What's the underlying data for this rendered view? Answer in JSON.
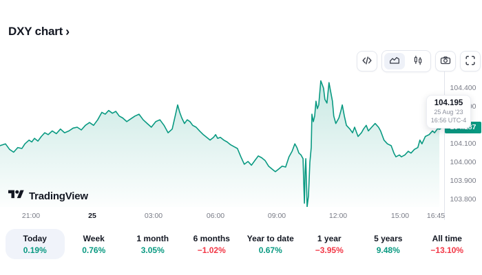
{
  "header": {
    "title": "DXY chart",
    "link_chevron": "›"
  },
  "toolbar": {
    "icons": [
      "code",
      "area-chart",
      "candlestick-chart",
      "camera",
      "fullscreen"
    ],
    "selected_style": "area-chart"
  },
  "watermark": {
    "text": "TradingView"
  },
  "colors": {
    "up": "#089981",
    "down": "#f23645",
    "badge_bg": "#089981",
    "selected_bg": "#f0f3fa",
    "text": "#131722",
    "muted": "#787b86",
    "border": "#e0e3eb"
  },
  "chart_data": {
    "type": "area",
    "title": "DXY chart",
    "series_name": "DXY",
    "legend_position": "none",
    "grid": false,
    "ylim": [
      103.76,
      104.49
    ],
    "yticks": [
      "104.400",
      "104.300",
      "104.200",
      "104.100",
      "104.000",
      "103.900",
      "103.800"
    ],
    "window_minutes": 1300,
    "x_unit": "minutes across visible session (24 Aug evening → 25 Aug 16:56)",
    "xticks": [
      {
        "label": "21:00",
        "min": 90
      },
      {
        "label": "25",
        "min": 270,
        "bold": true
      },
      {
        "label": "03:00",
        "min": 450
      },
      {
        "label": "06:00",
        "min": 630
      },
      {
        "label": "09:00",
        "min": 810
      },
      {
        "label": "12:00",
        "min": 990
      },
      {
        "label": "15:00",
        "min": 1170
      },
      {
        "label": "16:45",
        "min": 1275
      }
    ],
    "last": {
      "price": "104.187",
      "tooltip_price": "104.195",
      "date": "25 Aug '23",
      "time": "16:56 UTC-4"
    },
    "points": [
      [
        0,
        104.09
      ],
      [
        16,
        104.1
      ],
      [
        28,
        104.07
      ],
      [
        40,
        104.055
      ],
      [
        52,
        104.08
      ],
      [
        64,
        104.075
      ],
      [
        73,
        104.1
      ],
      [
        85,
        104.12
      ],
      [
        93,
        104.11
      ],
      [
        101,
        104.13
      ],
      [
        111,
        104.115
      ],
      [
        121,
        104.14
      ],
      [
        131,
        104.16
      ],
      [
        141,
        104.15
      ],
      [
        153,
        104.17
      ],
      [
        165,
        104.155
      ],
      [
        177,
        104.18
      ],
      [
        189,
        104.16
      ],
      [
        202,
        104.17
      ],
      [
        214,
        104.185
      ],
      [
        226,
        104.19
      ],
      [
        238,
        104.175
      ],
      [
        250,
        104.2
      ],
      [
        262,
        104.215
      ],
      [
        274,
        104.2
      ],
      [
        286,
        104.23
      ],
      [
        298,
        104.27
      ],
      [
        308,
        104.26
      ],
      [
        318,
        104.28
      ],
      [
        329,
        104.265
      ],
      [
        339,
        104.275
      ],
      [
        349,
        104.25
      ],
      [
        359,
        104.24
      ],
      [
        371,
        104.22
      ],
      [
        383,
        104.235
      ],
      [
        395,
        104.25
      ],
      [
        407,
        104.26
      ],
      [
        419,
        104.23
      ],
      [
        431,
        104.21
      ],
      [
        443,
        104.19
      ],
      [
        456,
        104.22
      ],
      [
        468,
        104.23
      ],
      [
        480,
        104.2
      ],
      [
        492,
        104.16
      ],
      [
        504,
        104.18
      ],
      [
        514,
        104.26
      ],
      [
        520,
        104.31
      ],
      [
        526,
        104.27
      ],
      [
        532,
        104.24
      ],
      [
        540,
        104.21
      ],
      [
        548,
        104.23
      ],
      [
        556,
        104.22
      ],
      [
        564,
        104.2
      ],
      [
        574,
        104.19
      ],
      [
        584,
        104.17
      ],
      [
        595,
        104.15
      ],
      [
        605,
        104.135
      ],
      [
        615,
        104.12
      ],
      [
        625,
        104.135
      ],
      [
        631,
        104.15
      ],
      [
        637,
        104.13
      ],
      [
        645,
        104.135
      ],
      [
        655,
        104.12
      ],
      [
        665,
        104.11
      ],
      [
        675,
        104.095
      ],
      [
        685,
        104.085
      ],
      [
        695,
        104.075
      ],
      [
        705,
        104.03
      ],
      [
        715,
        103.99
      ],
      [
        726,
        104.005
      ],
      [
        736,
        103.985
      ],
      [
        746,
        104.01
      ],
      [
        756,
        104.035
      ],
      [
        766,
        104.025
      ],
      [
        776,
        104.01
      ],
      [
        786,
        103.98
      ],
      [
        796,
        103.965
      ],
      [
        806,
        103.95
      ],
      [
        816,
        103.965
      ],
      [
        826,
        103.98
      ],
      [
        836,
        103.975
      ],
      [
        846,
        104.03
      ],
      [
        855,
        104.06
      ],
      [
        863,
        104.1
      ],
      [
        869,
        104.08
      ],
      [
        875,
        104.05
      ],
      [
        881,
        104.04
      ],
      [
        887,
        104.02
      ],
      [
        889,
        103.89
      ],
      [
        891,
        103.78
      ],
      [
        893,
        103.95
      ],
      [
        895,
        104.02
      ],
      [
        897,
        103.9
      ],
      [
        899,
        103.76
      ],
      [
        903,
        103.82
      ],
      [
        907,
        104.0
      ],
      [
        911,
        104.08
      ],
      [
        913,
        104.26
      ],
      [
        917,
        104.22
      ],
      [
        921,
        104.25
      ],
      [
        925,
        104.33
      ],
      [
        929,
        104.29
      ],
      [
        933,
        104.31
      ],
      [
        939,
        104.44
      ],
      [
        943,
        104.42
      ],
      [
        947,
        104.4
      ],
      [
        951,
        104.34
      ],
      [
        957,
        104.32
      ],
      [
        963,
        104.43
      ],
      [
        967,
        104.39
      ],
      [
        973,
        104.33
      ],
      [
        977,
        104.25
      ],
      [
        983,
        104.21
      ],
      [
        992,
        104.24
      ],
      [
        998,
        104.28
      ],
      [
        1002,
        104.31
      ],
      [
        1008,
        104.25
      ],
      [
        1014,
        104.2
      ],
      [
        1024,
        104.18
      ],
      [
        1032,
        104.16
      ],
      [
        1038,
        104.19
      ],
      [
        1048,
        104.14
      ],
      [
        1058,
        104.16
      ],
      [
        1064,
        104.18
      ],
      [
        1072,
        104.2
      ],
      [
        1078,
        104.17
      ],
      [
        1088,
        104.19
      ],
      [
        1098,
        104.21
      ],
      [
        1108,
        104.19
      ],
      [
        1114,
        104.17
      ],
      [
        1124,
        104.12
      ],
      [
        1134,
        104.1
      ],
      [
        1145,
        104.09
      ],
      [
        1153,
        104.05
      ],
      [
        1159,
        104.03
      ],
      [
        1169,
        104.04
      ],
      [
        1175,
        104.03
      ],
      [
        1185,
        104.04
      ],
      [
        1195,
        104.06
      ],
      [
        1203,
        104.05
      ],
      [
        1213,
        104.07
      ],
      [
        1223,
        104.08
      ],
      [
        1229,
        104.12
      ],
      [
        1235,
        104.1
      ],
      [
        1245,
        104.14
      ],
      [
        1256,
        104.15
      ],
      [
        1266,
        104.17
      ],
      [
        1272,
        104.16
      ],
      [
        1280,
        104.18
      ],
      [
        1286,
        104.187
      ]
    ]
  },
  "ranges": [
    {
      "label": "Today",
      "change": "0.19%",
      "direction": "up",
      "selected": true
    },
    {
      "label": "Week",
      "change": "0.76%",
      "direction": "up",
      "selected": false
    },
    {
      "label": "1 month",
      "change": "3.05%",
      "direction": "up",
      "selected": false
    },
    {
      "label": "6 months",
      "change": "−1.02%",
      "direction": "down",
      "selected": false
    },
    {
      "label": "Year to date",
      "change": "0.67%",
      "direction": "up",
      "selected": false
    },
    {
      "label": "1 year",
      "change": "−3.95%",
      "direction": "down",
      "selected": false
    },
    {
      "label": "5 years",
      "change": "9.48%",
      "direction": "up",
      "selected": false
    },
    {
      "label": "All time",
      "change": "−13.10%",
      "direction": "down",
      "selected": false
    }
  ]
}
